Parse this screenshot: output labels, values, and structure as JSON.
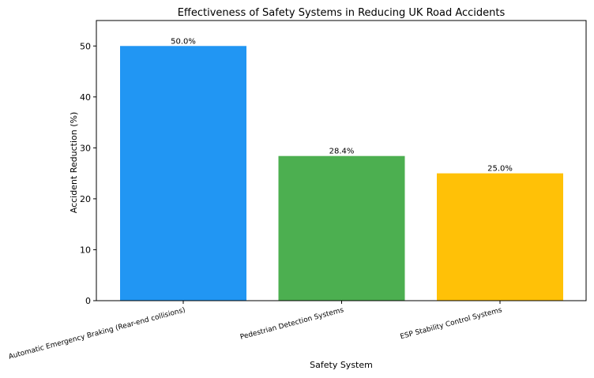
{
  "chart_data": {
    "type": "bar",
    "title": "Effectiveness of Safety Systems in Reducing UK Road Accidents",
    "xlabel": "Safety System",
    "ylabel": "Accident Reduction (%)",
    "categories": [
      "Automatic Emergency Braking (Rear-end collisions)",
      "Pedestrian Detection Systems",
      "ESP Stability Control Systems"
    ],
    "values": [
      50.0,
      28.4,
      25.0
    ],
    "value_labels": [
      "50.0%",
      "28.4%",
      "25.0%"
    ],
    "colors": [
      "#2196F3",
      "#4CAF50",
      "#FFC107"
    ],
    "ylim": [
      0,
      55
    ],
    "yticks": [
      0,
      10,
      20,
      30,
      40,
      50
    ],
    "grid": false,
    "legend": "none"
  }
}
